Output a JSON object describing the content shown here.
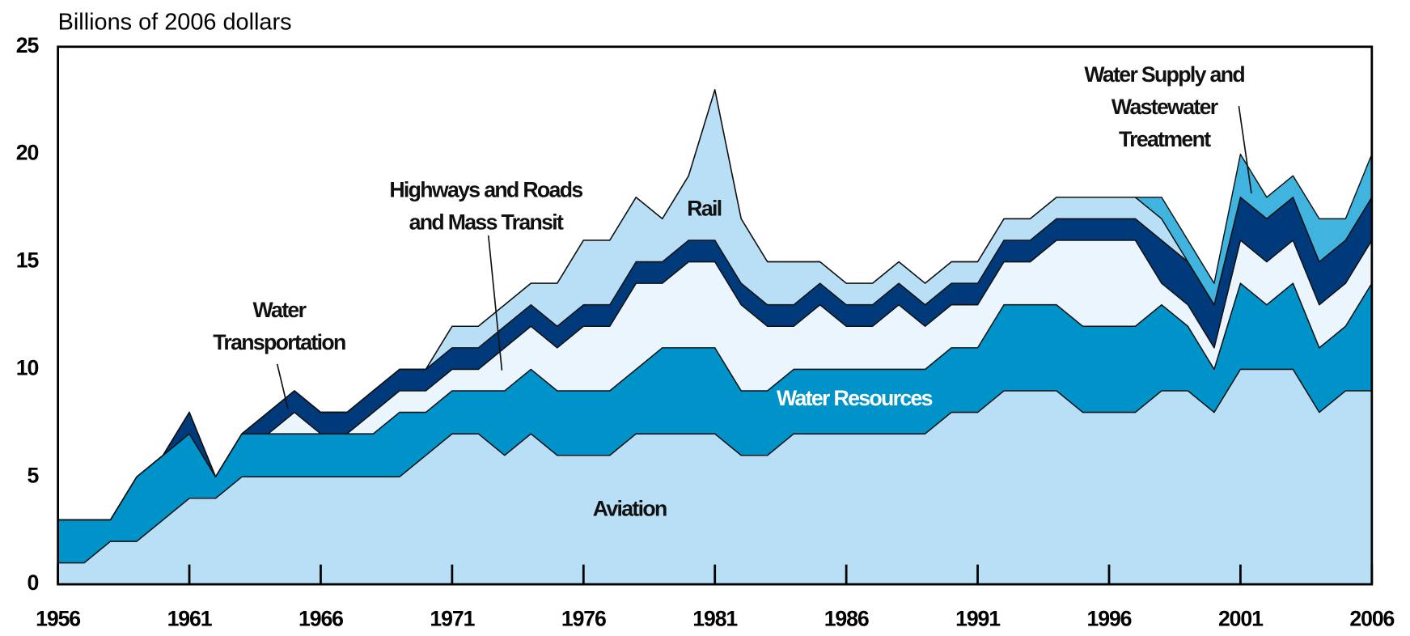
{
  "chart_data": {
    "type": "stacked_area",
    "y_axis_label": "Billions of 2006 dollars",
    "x": [
      1956,
      1957,
      1958,
      1959,
      1960,
      1961,
      1962,
      1963,
      1964,
      1965,
      1966,
      1967,
      1968,
      1969,
      1970,
      1971,
      1972,
      1973,
      1974,
      1975,
      1976,
      1977,
      1978,
      1979,
      1980,
      1981,
      1982,
      1983,
      1984,
      1985,
      1986,
      1987,
      1988,
      1989,
      1990,
      1991,
      1992,
      1993,
      1994,
      1995,
      1996,
      1997,
      1998,
      1999,
      2000,
      2001,
      2002,
      2003,
      2004,
      2005,
      2006
    ],
    "series": [
      {
        "name": "Aviation",
        "color": "#b8dff5",
        "values": [
          1,
          1,
          2,
          2,
          3,
          4,
          4,
          5,
          5,
          5,
          5,
          5,
          5,
          5,
          6,
          7,
          7,
          6,
          7,
          6,
          6,
          6,
          7,
          7,
          7,
          7,
          6,
          6,
          7,
          7,
          7,
          7,
          7,
          7,
          8,
          8,
          9,
          9,
          9,
          8,
          8,
          8,
          9,
          9,
          8,
          10,
          10,
          10,
          8,
          9,
          9
        ]
      },
      {
        "name": "Water Resources",
        "color": "#0093c9",
        "values": [
          2,
          2,
          1,
          3,
          3,
          3,
          1,
          2,
          2,
          2,
          2,
          2,
          2,
          3,
          2,
          2,
          2,
          3,
          3,
          3,
          3,
          3,
          3,
          4,
          4,
          4,
          3,
          3,
          3,
          3,
          3,
          3,
          3,
          3,
          3,
          3,
          4,
          4,
          4,
          4,
          4,
          4,
          4,
          3,
          2,
          4,
          3,
          4,
          3,
          3,
          5
        ]
      },
      {
        "name": "Highways and Roads and Mass Transit",
        "color": "#eaf5fd",
        "values": [
          0,
          0,
          0,
          0,
          0,
          0,
          0,
          0,
          0,
          1,
          0,
          0,
          1,
          1,
          1,
          1,
          1,
          2,
          2,
          2,
          3,
          3,
          4,
          3,
          4,
          4,
          4,
          3,
          2,
          3,
          2,
          2,
          3,
          2,
          2,
          2,
          2,
          2,
          3,
          4,
          4,
          4,
          1,
          1,
          1,
          2,
          2,
          2,
          2,
          2,
          2
        ]
      },
      {
        "name": "Water Transportation",
        "color": "#003a7a",
        "values": [
          0,
          0,
          0,
          0,
          0,
          1,
          0,
          0,
          1,
          1,
          1,
          1,
          1,
          1,
          1,
          1,
          1,
          1,
          1,
          1,
          1,
          1,
          1,
          1,
          1,
          1,
          1,
          1,
          1,
          1,
          1,
          1,
          1,
          1,
          1,
          1,
          1,
          1,
          1,
          1,
          1,
          1,
          2,
          2,
          2,
          2,
          2,
          2,
          2,
          2,
          2
        ]
      },
      {
        "name": "Rail",
        "color": "#b8dff5",
        "values": [
          0,
          0,
          0,
          0,
          0,
          0,
          0,
          0,
          0,
          0,
          0,
          0,
          0,
          0,
          0,
          1,
          1,
          1,
          1,
          2,
          3,
          3,
          3,
          2,
          3,
          7,
          3,
          2,
          2,
          1,
          1,
          1,
          1,
          1,
          1,
          1,
          1,
          1,
          1,
          1,
          1,
          1,
          1,
          0,
          0,
          0,
          0,
          0,
          0,
          0,
          0
        ]
      },
      {
        "name": "Water Supply and Wastewater Treatment",
        "color": "#40b4de",
        "values": [
          0,
          0,
          0,
          0,
          0,
          0,
          0,
          0,
          0,
          0,
          0,
          0,
          0,
          0,
          0,
          0,
          0,
          0,
          0,
          0,
          0,
          0,
          0,
          0,
          0,
          0,
          0,
          0,
          0,
          0,
          0,
          0,
          0,
          0,
          0,
          0,
          0,
          0,
          0,
          0,
          0,
          0,
          1,
          1,
          1,
          2,
          1,
          1,
          2,
          1,
          2
        ]
      }
    ],
    "xlim": [
      1956,
      2006
    ],
    "xticks": [
      1956,
      1961,
      1966,
      1971,
      1976,
      1981,
      1986,
      1991,
      1996,
      2001,
      2006
    ],
    "ylim": [
      0,
      25
    ],
    "yticks": [
      0,
      5,
      10,
      15,
      20,
      25
    ],
    "grid": false
  }
}
